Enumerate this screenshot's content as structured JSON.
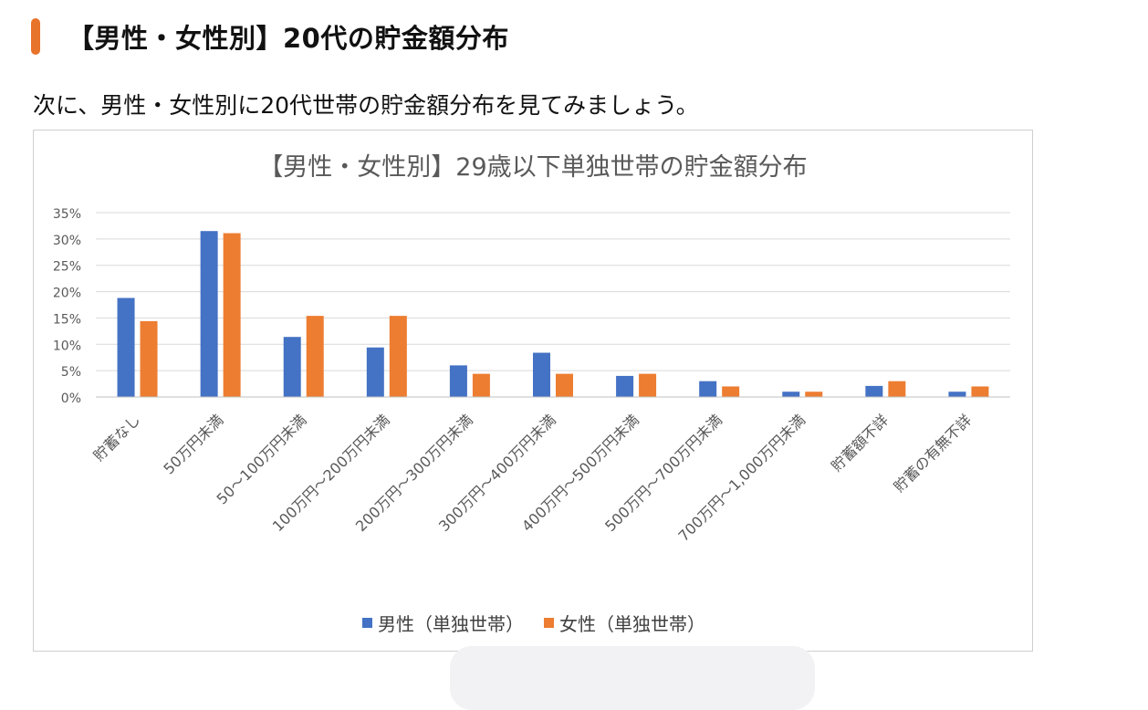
{
  "heading": {
    "text": "【男性・女性別】20代の貯金額分布"
  },
  "intro": {
    "text": "次に、男性・女性別に20代世帯の貯金額分布を見てみましょう。"
  },
  "colors": {
    "accent": "#e8732a",
    "male": "#4472c4",
    "female": "#ed7d31"
  },
  "chart_data": {
    "type": "bar",
    "title": "【男性・女性別】29歳以下単独世帯の貯金額分布",
    "xlabel": "",
    "ylabel": "",
    "ylim": [
      0,
      35
    ],
    "yticks": [
      "35%",
      "30%",
      "25%",
      "20%",
      "15%",
      "10%",
      "5%",
      "0%"
    ],
    "grid": true,
    "legend_position": "bottom",
    "categories": [
      "貯蓄なし",
      "50万円未満",
      "50～100万円未満",
      "100万円～200万円未満",
      "200万円～300万円未満",
      "300万円～400万円未満",
      "400万円～500万円未満",
      "500万円～700万円未満",
      "700万円～1,000万円未満",
      "貯蓄額不詳",
      "貯蓄の有無不詳"
    ],
    "series": [
      {
        "name": "男性（単独世帯）",
        "color": "#4472c4",
        "values": [
          18.8,
          31.5,
          11.4,
          9.4,
          6.0,
          8.4,
          4.0,
          3.0,
          1.0,
          2.1,
          1.0
        ]
      },
      {
        "name": "女性（単独世帯）",
        "color": "#ed7d31",
        "values": [
          14.4,
          31.1,
          15.4,
          15.4,
          4.4,
          4.4,
          4.4,
          2.0,
          1.0,
          3.0,
          2.0
        ]
      }
    ]
  }
}
